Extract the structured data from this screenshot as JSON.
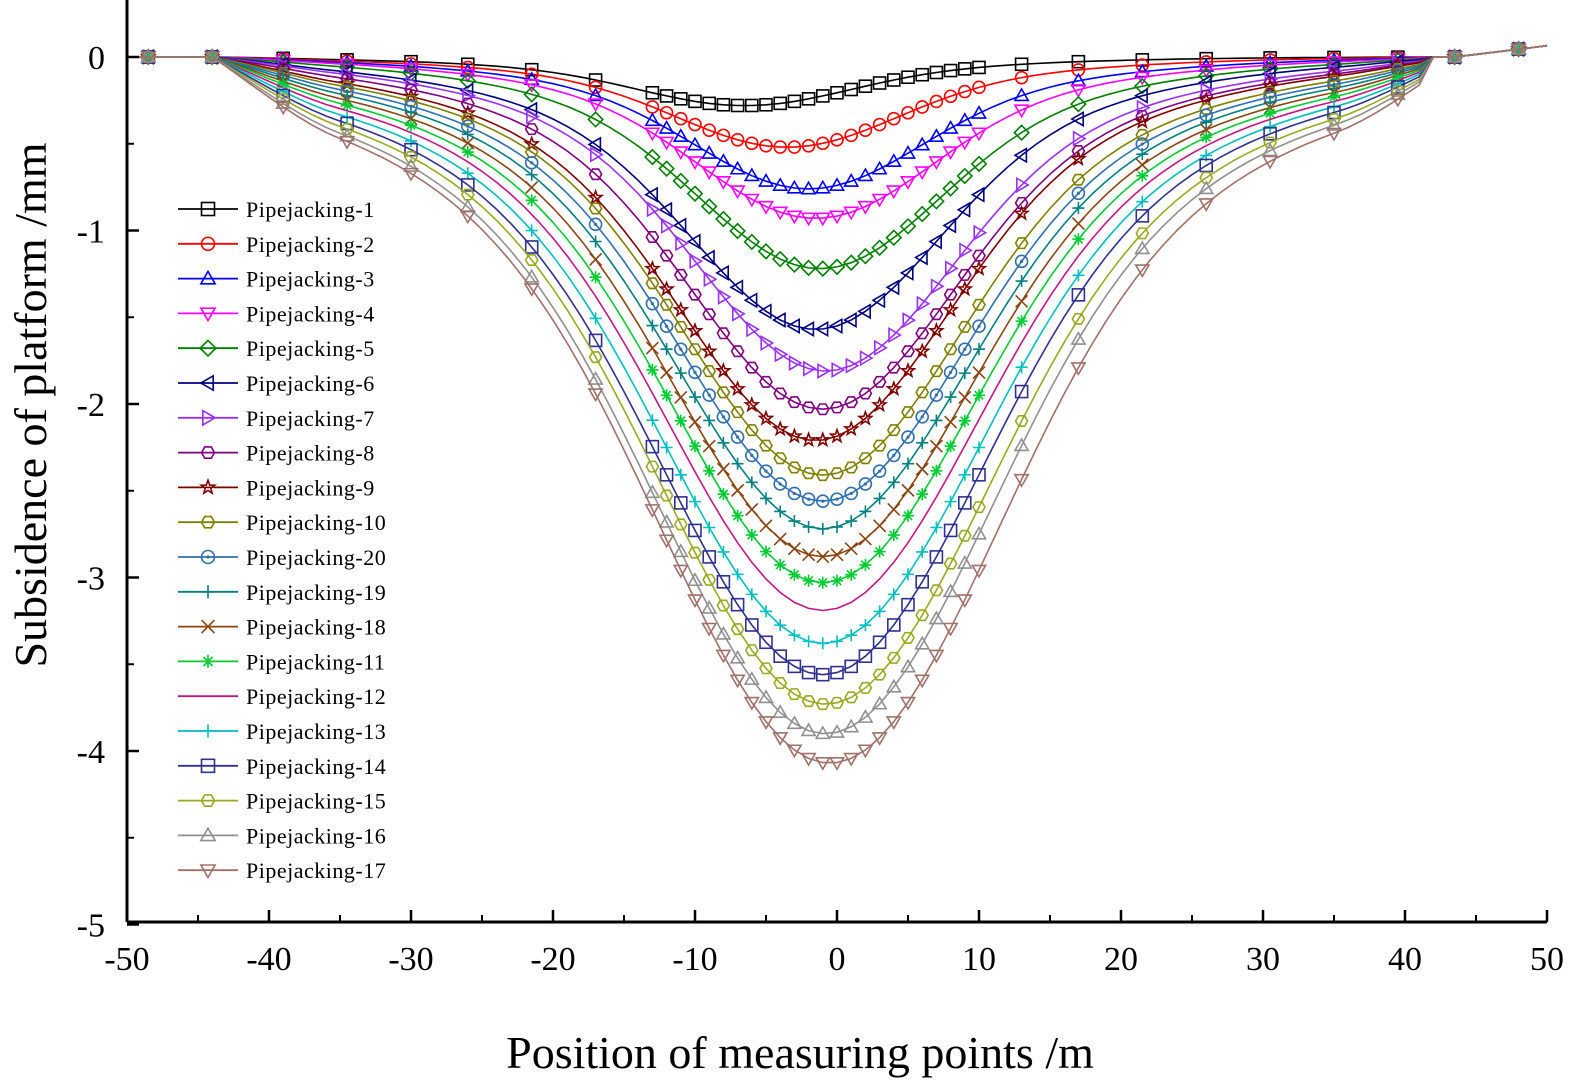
{
  "chart_data": {
    "type": "line",
    "title": "",
    "xlabel": "Position of measuring points /m",
    "ylabel": "Subsidence of platform /mm",
    "xlim": [
      -50,
      50
    ],
    "ylim": [
      -5,
      0.3
    ],
    "xticks": [
      -50,
      -40,
      -30,
      -20,
      -10,
      0,
      10,
      20,
      30,
      40,
      50
    ],
    "xtick_labels": [
      "-50",
      "-40",
      "-30",
      "-20",
      "-10",
      "0",
      "10",
      "20",
      "30",
      "40",
      "50"
    ],
    "yticks": [
      0,
      -1,
      -2,
      -3,
      -4,
      -5
    ],
    "ytick_labels": [
      "0",
      "-1",
      "-2",
      "-3",
      "-4",
      "-5"
    ],
    "legend_position": "left",
    "series": [
      {
        "name": "Pipejacking-1",
        "color": "#000000",
        "marker": "square",
        "min": -0.28,
        "center": -6.5
      },
      {
        "name": "Pipejacking-2",
        "color": "#ff0000",
        "marker": "circle",
        "min": -0.52,
        "center": -3.5
      },
      {
        "name": "Pipejacking-3",
        "color": "#0000ff",
        "marker": "triangle-up",
        "min": -0.76,
        "center": -2.0
      },
      {
        "name": "Pipejacking-4",
        "color": "#ff00ff",
        "marker": "triangle-down",
        "min": -0.93,
        "center": -1.5
      },
      {
        "name": "Pipejacking-5",
        "color": "#008000",
        "marker": "diamond",
        "min": -1.22,
        "center": -1.2
      },
      {
        "name": "Pipejacking-6",
        "color": "#000080",
        "marker": "triangle-left",
        "min": -1.57,
        "center": -1.5
      },
      {
        "name": "Pipejacking-7",
        "color": "#9b30ff",
        "marker": "triangle-right",
        "min": -1.81,
        "center": -0.8
      },
      {
        "name": "Pipejacking-8",
        "color": "#800080",
        "marker": "hexagon",
        "min": -2.03,
        "center": -1.0
      },
      {
        "name": "Pipejacking-9",
        "color": "#800000",
        "marker": "star",
        "min": -2.21,
        "center": -1.5
      },
      {
        "name": "Pipejacking-10",
        "color": "#808000",
        "marker": "hexagon",
        "min": -2.41,
        "center": -1.0
      },
      {
        "name": "Pipejacking-20",
        "color": "#3070b0",
        "marker": "circle-dot",
        "min": -2.56,
        "center": -1.0
      },
      {
        "name": "Pipejacking-19",
        "color": "#008080",
        "marker": "plus",
        "min": -2.72,
        "center": -1.0
      },
      {
        "name": "Pipejacking-18",
        "color": "#8b4513",
        "marker": "cross",
        "min": -2.88,
        "center": -1.0
      },
      {
        "name": "Pipejacking-11",
        "color": "#00cc33",
        "marker": "asterisk",
        "min": -3.03,
        "center": -1.0
      },
      {
        "name": "Pipejacking-12",
        "color": "#c71585",
        "marker": "none",
        "min": -3.19,
        "center": -1.0
      },
      {
        "name": "Pipejacking-13",
        "color": "#00bfbf",
        "marker": "plus",
        "min": -3.38,
        "center": -1.0
      },
      {
        "name": "Pipejacking-14",
        "color": "#303090",
        "marker": "square",
        "min": -3.56,
        "center": -1.0
      },
      {
        "name": "Pipejacking-15",
        "color": "#99aa22",
        "marker": "hexagon",
        "min": -3.73,
        "center": -0.8
      },
      {
        "name": "Pipejacking-16",
        "color": "#909090",
        "marker": "triangle-up",
        "min": -3.9,
        "center": -0.8
      },
      {
        "name": "Pipejacking-17",
        "color": "#a0706a",
        "marker": "triangle-down",
        "min": -4.07,
        "center": -0.5
      }
    ]
  }
}
